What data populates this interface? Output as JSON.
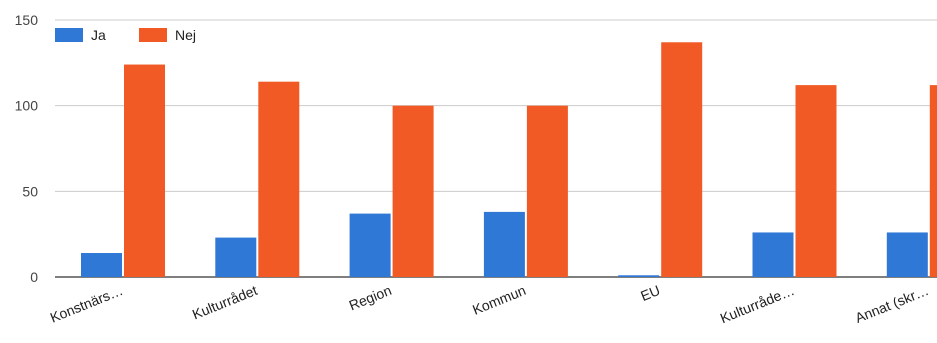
{
  "chart_data": {
    "type": "bar",
    "categories": [
      "Konstnärs…",
      "Kulturrådet",
      "Region",
      "Kommun",
      "EU",
      "Kulturråde…",
      "Annat (skr…"
    ],
    "series": [
      {
        "name": "Ja",
        "color": "#2F78D6",
        "values": [
          14,
          23,
          37,
          38,
          1,
          26,
          26
        ]
      },
      {
        "name": "Nej",
        "color": "#F15A24",
        "values": [
          124,
          114,
          100,
          100,
          137,
          112,
          112
        ]
      }
    ],
    "ylim": [
      0,
      150
    ],
    "yticks": [
      0,
      50,
      100,
      150
    ],
    "grid": true,
    "legend_position": "top-left",
    "title": "",
    "xlabel": "",
    "ylabel": ""
  }
}
